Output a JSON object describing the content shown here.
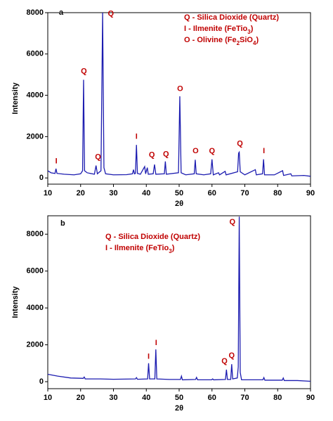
{
  "chart_data": [
    {
      "type": "line",
      "panel_label": "a",
      "x_label": "2θ",
      "y_label": "Intensity",
      "color": "#1c1cb0",
      "label_color": "#c00000",
      "xlim": [
        10,
        90
      ],
      "xticks": [
        10,
        20,
        30,
        40,
        50,
        60,
        70,
        80,
        90
      ],
      "ylim": [
        -300,
        8000
      ],
      "yticks": [
        0,
        2000,
        4000,
        6000,
        8000
      ],
      "x": [
        10,
        11,
        12.2,
        12.5,
        12.8,
        15,
        18,
        20,
        20.6,
        20.9,
        21.2,
        22,
        24.2,
        24.7,
        25.1,
        26.2,
        26.7,
        27.1,
        27.6,
        30,
        34,
        35.8,
        36.1,
        36.4,
        36.7,
        37.0,
        37.3,
        38.2,
        39.5,
        39.8,
        40.3,
        40.6,
        42.1,
        42.5,
        42.9,
        45.5,
        45.8,
        46.1,
        49.8,
        50.2,
        50.6,
        52,
        54.6,
        54.9,
        55.2,
        57.5,
        59.6,
        60,
        60.4,
        62,
        62.3,
        64,
        64.3,
        67.8,
        68.1,
        68.3,
        68.6,
        70,
        73.2,
        73.5,
        75.4,
        75.7,
        76,
        79,
        81.5,
        81.8,
        84,
        84.3,
        88,
        90
      ],
      "values": [
        350,
        250,
        220,
        450,
        220,
        180,
        150,
        200,
        350,
        4750,
        350,
        250,
        180,
        600,
        200,
        350,
        8000,
        500,
        200,
        150,
        160,
        200,
        400,
        200,
        220,
        1600,
        220,
        180,
        550,
        200,
        500,
        180,
        200,
        650,
        180,
        200,
        800,
        180,
        250,
        3950,
        250,
        150,
        200,
        880,
        200,
        150,
        200,
        900,
        150,
        250,
        150,
        320,
        150,
        300,
        1200,
        1250,
        300,
        150,
        400,
        150,
        200,
        900,
        150,
        150,
        350,
        120,
        200,
        100,
        120,
        80
      ],
      "peak_labels": [
        {
          "text": "I",
          "x": 12.6,
          "y": 800
        },
        {
          "text": "Q",
          "x": 21,
          "y": 5150
        },
        {
          "text": "Q",
          "x": 25.3,
          "y": 1000
        },
        {
          "text": "Q",
          "x": 29.2,
          "y": 7950
        },
        {
          "text": "I",
          "x": 37,
          "y": 2000
        },
        {
          "text": "Q",
          "x": 41.7,
          "y": 1100
        },
        {
          "text": "Q",
          "x": 46,
          "y": 1150
        },
        {
          "text": "O",
          "x": 50.3,
          "y": 4300
        },
        {
          "text": "O",
          "x": 55,
          "y": 1300
        },
        {
          "text": "Q",
          "x": 60,
          "y": 1300
        },
        {
          "text": "Q",
          "x": 68.5,
          "y": 1650
        },
        {
          "text": "I",
          "x": 75.8,
          "y": 1300
        }
      ],
      "legend": [
        {
          "parts": [
            {
              "text": "Q - Silica Dioxide (Quartz)"
            }
          ]
        },
        {
          "parts": [
            {
              "text": "I - Ilmenite (FeTio"
            },
            {
              "text": "3",
              "sub": true
            },
            {
              "text": ")"
            }
          ]
        },
        {
          "parts": [
            {
              "text": "O - Olivine (Fe"
            },
            {
              "text": "2",
              "sub": true
            },
            {
              "text": "SiO"
            },
            {
              "text": "4",
              "sub": true
            },
            {
              "text": ")"
            }
          ]
        }
      ]
    },
    {
      "type": "line",
      "panel_label": "b",
      "x_label": "2θ",
      "y_label": "Intensity",
      "color": "#1c1cb0",
      "label_color": "#c00000",
      "xlim": [
        10,
        90
      ],
      "xticks": [
        10,
        20,
        30,
        40,
        50,
        60,
        70,
        80,
        90
      ],
      "ylim": [
        -380,
        9000
      ],
      "yticks": [
        0,
        2000,
        4000,
        6000,
        8000
      ],
      "x": [
        10,
        13,
        17,
        20.8,
        21.1,
        21.4,
        26,
        30,
        36.7,
        37,
        37.3,
        40.4,
        40.7,
        41,
        42.6,
        42.9,
        43.2,
        47,
        50.4,
        50.7,
        51,
        55,
        55.3,
        55.6,
        59.9,
        60.2,
        60.5,
        64.1,
        64.4,
        64.7,
        65.7,
        66,
        66.3,
        67.7,
        68,
        68.3,
        68.6,
        69,
        72,
        75.5,
        75.8,
        76.1,
        81.4,
        81.7,
        82,
        86,
        90
      ],
      "values": [
        400,
        300,
        200,
        180,
        250,
        150,
        150,
        130,
        150,
        220,
        130,
        150,
        1000,
        150,
        150,
        1750,
        150,
        120,
        120,
        300,
        100,
        120,
        230,
        100,
        100,
        150,
        100,
        120,
        650,
        120,
        120,
        950,
        150,
        200,
        800,
        8950,
        500,
        100,
        100,
        100,
        220,
        80,
        80,
        200,
        60,
        60,
        20
      ],
      "peak_labels": [
        {
          "text": "I",
          "x": 40.7,
          "y": 1350
        },
        {
          "text": "I",
          "x": 43,
          "y": 2100
        },
        {
          "text": "Q",
          "x": 63.8,
          "y": 1100
        },
        {
          "text": "Q",
          "x": 66,
          "y": 1400
        },
        {
          "text": "Q",
          "x": 66.2,
          "y": 8650
        }
      ],
      "legend": [
        {
          "parts": [
            {
              "text": "Q - Silica Dioxide (Quartz)"
            }
          ]
        },
        {
          "parts": [
            {
              "text": "I - Ilmenite (FeTio"
            },
            {
              "text": "3",
              "sub": true
            },
            {
              "text": ")"
            }
          ]
        }
      ]
    }
  ]
}
